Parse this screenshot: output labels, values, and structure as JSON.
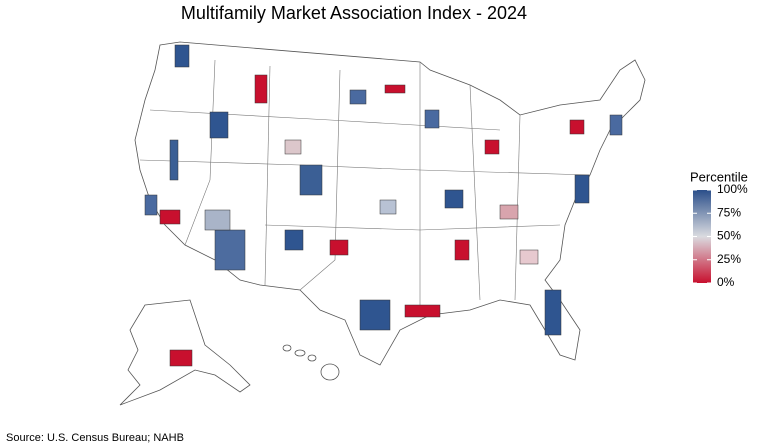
{
  "title": "Multifamily Market Association Index - 2024",
  "legend": {
    "title": "Percentile",
    "ticks": [
      {
        "value": 0,
        "label": "0%"
      },
      {
        "value": 25,
        "label": "25%"
      },
      {
        "value": 50,
        "label": "50%"
      },
      {
        "value": 75,
        "label": "75%"
      },
      {
        "value": 100,
        "label": "100%"
      }
    ],
    "colors": [
      "#c8102e",
      "#dadbe0",
      "#2b4f8a"
    ]
  },
  "source": "Source: U.S. Census Bureau; NAHB"
}
